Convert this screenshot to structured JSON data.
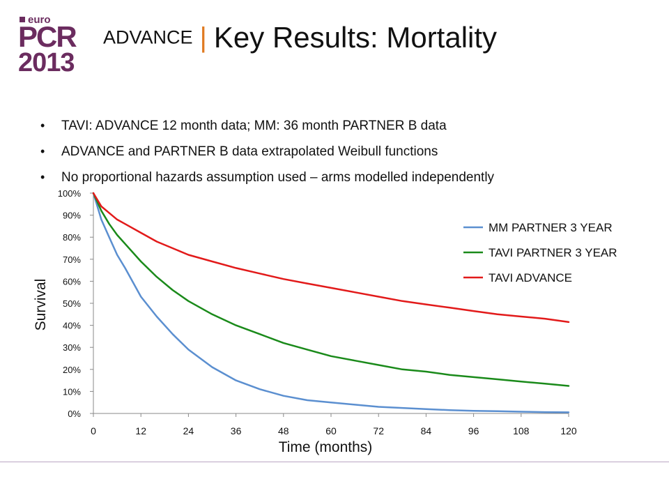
{
  "logo": {
    "euro": "euro",
    "brand": "PCR",
    "year": "2013"
  },
  "header": {
    "kicker": "ADVANCE",
    "separator": "|",
    "title": "Key Results: Mortality"
  },
  "bullets": [
    "TAVI: ADVANCE 12 month data; MM: 36 month PARTNER B data",
    "ADVANCE and PARTNER B data extrapolated Weibull functions",
    "No proportional hazards assumption used – arms modelled independently"
  ],
  "chart_data": {
    "type": "line",
    "xlabel": "Time (months)",
    "ylabel": "Survival",
    "xlim": [
      0,
      120
    ],
    "ylim": [
      0,
      100
    ],
    "x_ticks": [
      0,
      12,
      24,
      36,
      48,
      60,
      72,
      84,
      96,
      108,
      120
    ],
    "y_ticks": [
      "0%",
      "10%",
      "20%",
      "30%",
      "40%",
      "50%",
      "60%",
      "70%",
      "80%",
      "90%",
      "100%"
    ],
    "grid": false,
    "legend_position": "top-right",
    "x": [
      0,
      2,
      4,
      6,
      8,
      12,
      16,
      20,
      24,
      30,
      36,
      42,
      48,
      54,
      60,
      66,
      72,
      78,
      84,
      90,
      96,
      102,
      108,
      114,
      120
    ],
    "series": [
      {
        "name": "MM PARTNER 3 YEAR",
        "color": "#5b8fd0",
        "values": [
          100,
          88,
          80,
          72,
          66,
          53,
          44,
          36,
          29,
          21,
          15,
          11,
          8,
          6,
          5,
          4,
          3,
          2.5,
          2,
          1.5,
          1.2,
          1,
          0.8,
          0.6,
          0.5
        ]
      },
      {
        "name": "TAVI PARTNER 3 YEAR",
        "color": "#1a8a1a",
        "values": [
          100,
          92,
          86,
          81,
          77,
          69,
          62,
          56,
          51,
          45,
          40,
          36,
          32,
          29,
          26,
          24,
          22,
          20,
          19,
          17.5,
          16.5,
          15.5,
          14.5,
          13.5,
          12.5
        ]
      },
      {
        "name": "TAVI ADVANCE",
        "color": "#e21a1a",
        "values": [
          100,
          94,
          91,
          88,
          86,
          82,
          78,
          75,
          72,
          69,
          66,
          63.5,
          61,
          59,
          57,
          55,
          53,
          51,
          49.5,
          48,
          46.5,
          45,
          44,
          43,
          41.5
        ]
      }
    ]
  }
}
